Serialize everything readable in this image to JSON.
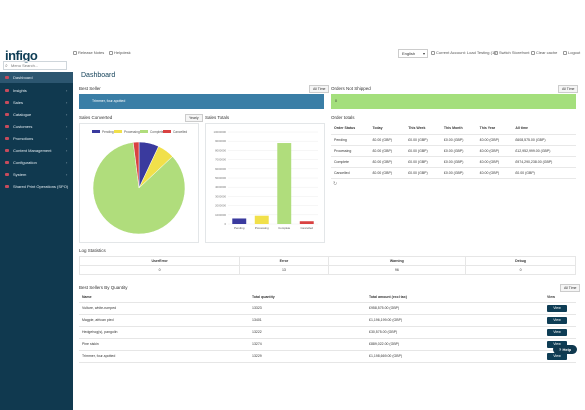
{
  "app": {
    "logo_text": "infigo"
  },
  "topbar": {
    "search_placeholder": "Menu Search...",
    "release_notes": "Release Notes",
    "helpdesk": "Helpdesk",
    "language": "English",
    "current_account": "Current Account: Load Testing (15)",
    "switch_storefront": "Switch Storefront",
    "clear_cache": "Clear cache",
    "logout": "Logout"
  },
  "sidebar": {
    "items": [
      {
        "label": "Dashboard",
        "active": true
      },
      {
        "label": "Insights"
      },
      {
        "label": "Sales"
      },
      {
        "label": "Catalogue"
      },
      {
        "label": "Customers"
      },
      {
        "label": "Promotions"
      },
      {
        "label": "Content Management"
      },
      {
        "label": "Configuration"
      },
      {
        "label": "System"
      },
      {
        "label": "Shared Print Operations (SPO)"
      }
    ]
  },
  "main": {
    "title": "Dashboard",
    "best_seller": {
      "title": "Best Seller",
      "filter": "All Time",
      "product": "Trimmer, four-spotted"
    },
    "orders_not_shipped": {
      "title": "Orders Not Shipped",
      "filter": "All Time",
      "value": "0"
    },
    "sales_converted": {
      "title": "Sales Converted",
      "filter": "Yearly",
      "legend": [
        "Pending",
        "Processing",
        "Complete",
        "Cancelled"
      ]
    },
    "sales_totals": {
      "title": "Sales Totals"
    },
    "order_totals": {
      "title": "Order totals",
      "headers": [
        "Order Status",
        "Today",
        "This Week",
        "This Month",
        "This Year",
        "All time"
      ],
      "rows": [
        [
          "Pending",
          "£0.00 (GBP)",
          "£0.00 (GBP)",
          "£0.00 (GBP)",
          "£0.00 (GBP)",
          "£608,575.00 (GBP)"
        ],
        [
          "Processing",
          "£0.00 (GBP)",
          "£0.00 (GBP)",
          "£0.00 (GBP)",
          "£0.00 (GBP)",
          "£12,952,999.00 (GBP)"
        ],
        [
          "Complete",
          "£0.00 (GBP)",
          "£0.00 (GBP)",
          "£0.00 (GBP)",
          "£0.00 (GBP)",
          "£974,290,238.00 (GBP)"
        ],
        [
          "Cancelled",
          "£0.00 (GBP)",
          "£0.00 (GBP)",
          "£0.00 (GBP)",
          "£0.00 (GBP)",
          "£0.00 (GBP)"
        ]
      ]
    },
    "log_statistics": {
      "title": "Log Statistics",
      "headers": [
        "UserError",
        "Error",
        "Warning",
        "Debug"
      ],
      "values": [
        "0",
        "13",
        "96",
        "0"
      ]
    },
    "best_sellers_qty": {
      "title": "Best Sellers By Quantity",
      "filter": "All Time",
      "headers": [
        "Name",
        "Total quantity",
        "Total amount (excl tax)",
        "View"
      ],
      "rows": [
        [
          "Vulture, white-rumped",
          "13323",
          "£958,575.00 (GBP)",
          "View"
        ],
        [
          "Magpie, african pied",
          "13401",
          "£1,196,199.00 (GBP)",
          "View"
        ],
        [
          "Hedgehog(s), pangolin",
          "13222",
          "£30,575.00 (GBP)",
          "View"
        ],
        [
          "Pine siskin",
          "13274",
          "£889,022.00 (GBP)",
          "View"
        ],
        [
          "Trimmer, four-spotted",
          "13229",
          "£1,198,669.00 (GBP)",
          "View"
        ]
      ]
    },
    "help_label": "Help"
  },
  "chart_data": [
    {
      "type": "pie",
      "title": "Sales Converted",
      "labels": [
        "Pending",
        "Processing",
        "Complete",
        "Cancelled"
      ],
      "values": [
        7,
        6,
        85,
        2
      ],
      "colors": [
        "#3a3a9e",
        "#f1e04a",
        "#b0dd7c",
        "#d94141"
      ]
    },
    {
      "type": "bar",
      "title": "Sales Totals",
      "categories": [
        "Pending",
        "Processing",
        "Complete",
        "Cancelled"
      ],
      "values": [
        600000,
        900000,
        8800000,
        300000
      ],
      "ylim": [
        0,
        10000000
      ],
      "yticks": [
        "10000000",
        "9000000",
        "8000000",
        "7000000",
        "6000000",
        "5000000",
        "4000000",
        "3000000",
        "2000000",
        "1000000",
        "0"
      ],
      "colors": [
        "#3a3a9e",
        "#f1e04a",
        "#b0dd7c",
        "#d94141"
      ]
    }
  ],
  "colors": {
    "sidebar": "#10394f",
    "best_seller_bar": "#3a7ea6",
    "orders_bar": "#a4df7c",
    "brand": "#0e3d55"
  }
}
